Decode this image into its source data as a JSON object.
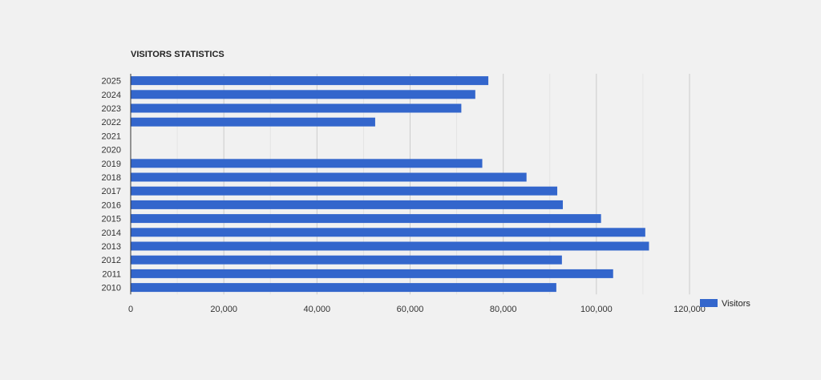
{
  "chart_data": {
    "type": "bar",
    "orientation": "horizontal",
    "title": "VISITORS STATISTICS",
    "xlabel": "",
    "ylabel": "",
    "categories": [
      "2025",
      "2024",
      "2023",
      "2022",
      "2021",
      "2020",
      "2019",
      "2018",
      "2017",
      "2016",
      "2015",
      "2014",
      "2013",
      "2012",
      "2011",
      "2010"
    ],
    "series": [
      {
        "name": "Visitors",
        "color": "#3366cc",
        "values": [
          76800,
          74000,
          71000,
          52500,
          null,
          null,
          75500,
          85000,
          91600,
          92800,
          101000,
          110500,
          111300,
          92600,
          103600,
          91400
        ]
      }
    ],
    "xlim": [
      0,
      120000
    ],
    "x_ticks": [
      0,
      20000,
      40000,
      60000,
      80000,
      100000,
      120000
    ],
    "x_tick_labels": [
      "0",
      "20,000",
      "40,000",
      "60,000",
      "80,000",
      "100,000",
      "120,000"
    ],
    "grid": true,
    "legend_position": "right-bottom",
    "colors": {
      "background": "#f1f1f1",
      "bar": "#3366cc",
      "gridline": "#cccccc",
      "minor_gridline": "#e4e4e4",
      "axis": "#333333"
    }
  }
}
